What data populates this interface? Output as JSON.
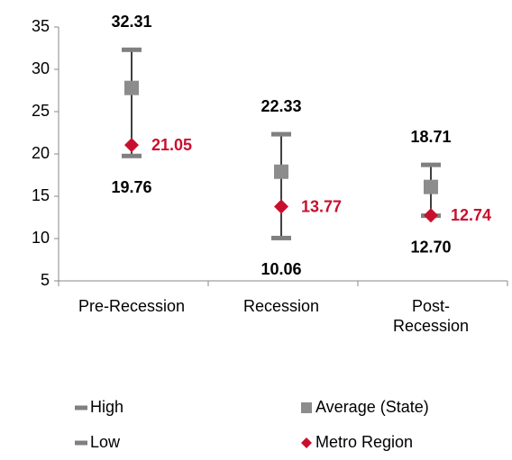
{
  "chart_data": {
    "type": "hilo",
    "categories": [
      "Pre-Recession",
      "Recession",
      "Post-\nRecession"
    ],
    "series": [
      {
        "name": "High",
        "marker": "dash",
        "color": "#808080",
        "values": [
          32.31,
          22.33,
          18.71
        ]
      },
      {
        "name": "Low",
        "marker": "dash",
        "color": "#808080",
        "values": [
          19.76,
          10.06,
          12.7
        ],
        "value_labels": [
          "19.76",
          "10.06",
          "12.70"
        ]
      },
      {
        "name": "Average (State)",
        "marker": "square",
        "color": "#8c8c8c",
        "values": [
          27.8,
          17.9,
          16.1
        ]
      },
      {
        "name": "Metro Region",
        "marker": "diamond",
        "color": "#c8102e",
        "values": [
          21.05,
          13.77,
          12.74
        ]
      }
    ],
    "ylim": [
      5,
      35
    ],
    "yticks": [
      5,
      10,
      15,
      20,
      25,
      30,
      35
    ]
  }
}
